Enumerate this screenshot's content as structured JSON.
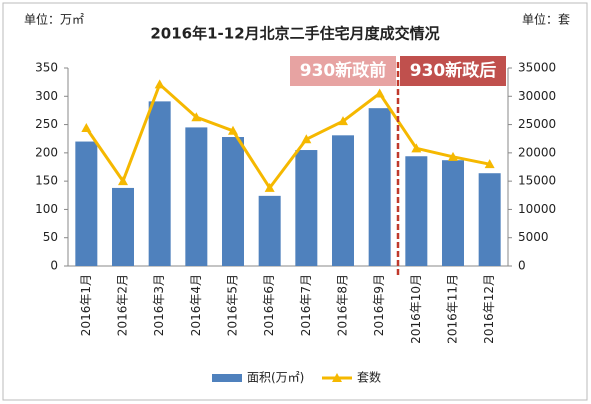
{
  "chart_data": {
    "type": "bar",
    "title": "2016年1-12月北京二手住宅月度成交情况",
    "y_unit_label": "单位：万㎡",
    "y2_unit_label": "单位：套",
    "annotations": [
      "930新政前",
      "930新政后"
    ],
    "categories": [
      "2016年1月",
      "2016年2月",
      "2016年3月",
      "2016年4月",
      "2016年5月",
      "2016年6月",
      "2016年7月",
      "2016年8月",
      "2016年9月",
      "2016年10月",
      "2016年11月",
      "2016年12月"
    ],
    "series": [
      {
        "name": "面积(万㎡)",
        "color": "#4f81bd",
        "type": "bar",
        "values": [
          220,
          138,
          291,
          245,
          228,
          124,
          205,
          231,
          279,
          194,
          187,
          164
        ]
      },
      {
        "name": "套数",
        "color": "#f5b800",
        "type": "line",
        "axis": "y2",
        "values": [
          24400,
          15000,
          32100,
          26300,
          23900,
          13800,
          22400,
          25600,
          30500,
          20800,
          19300,
          18000
        ]
      }
    ],
    "ylim": [
      0,
      350
    ],
    "yticks": [
      0,
      50,
      100,
      150,
      200,
      250,
      300,
      350
    ],
    "y2lim": [
      0,
      35000
    ],
    "y2ticks": [
      0,
      5000,
      10000,
      15000,
      20000,
      25000,
      30000,
      35000
    ],
    "legend": "bottom"
  }
}
